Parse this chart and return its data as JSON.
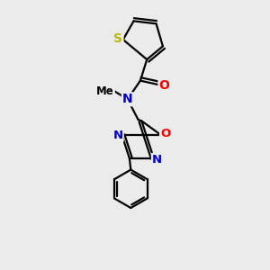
{
  "bg_color": "#ebebeb",
  "bond_color": "#000000",
  "bond_width": 1.6,
  "atom_colors": {
    "S": "#b8b800",
    "O": "#ff0000",
    "N": "#0000cc",
    "C": "#000000"
  },
  "font_size_atom": 10,
  "font_size_small": 8.5
}
